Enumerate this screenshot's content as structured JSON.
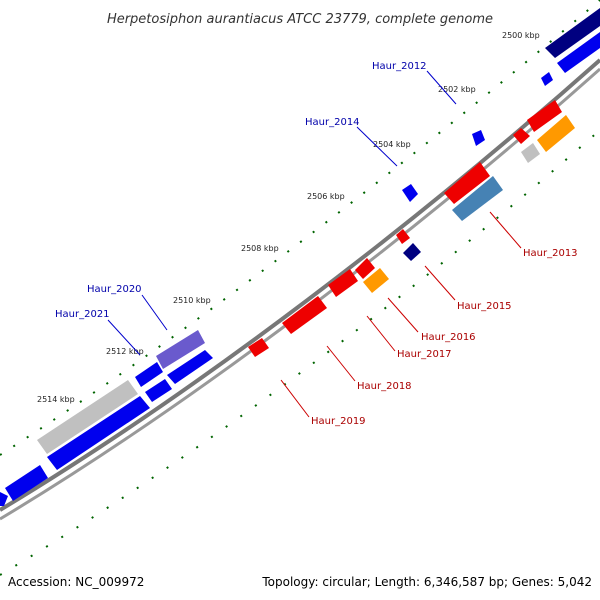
{
  "title": "Herpetosiphon aurantiacus ATCC 23779, complete genome",
  "footer": {
    "accession": "Accession: NC_009972",
    "summary": "Topology: circular; Length: 6,346,587 bp; Genes: 5,042"
  },
  "ticks": [
    "2500 kbp",
    "2502 kbp",
    "2504 kbp",
    "2506 kbp",
    "2508 kbp",
    "2510 kbp",
    "2512 kbp",
    "2514 kbp"
  ],
  "gene_labels": {
    "forward": [
      "Haur_2012",
      "Haur_2014",
      "Haur_2020",
      "Haur_2021"
    ],
    "reverse": [
      "Haur_2013",
      "Haur_2015",
      "Haur_2016",
      "Haur_2017",
      "Haur_2018",
      "Haur_2019"
    ]
  },
  "colors": {
    "backbone": "#777777",
    "forward_gene": "#0000ee",
    "forward_gene_dark": "#000080",
    "forward_gene_purple": "#6a5acd",
    "reverse_gene": "#ee0000",
    "reverse_gene_orange": "#ff9900",
    "reverse_gene_steel": "#4682b4",
    "gray_gene": "#c0c0c0",
    "tick_mark": "#006400",
    "forward_label": "#0000aa",
    "reverse_label": "#aa0000"
  }
}
